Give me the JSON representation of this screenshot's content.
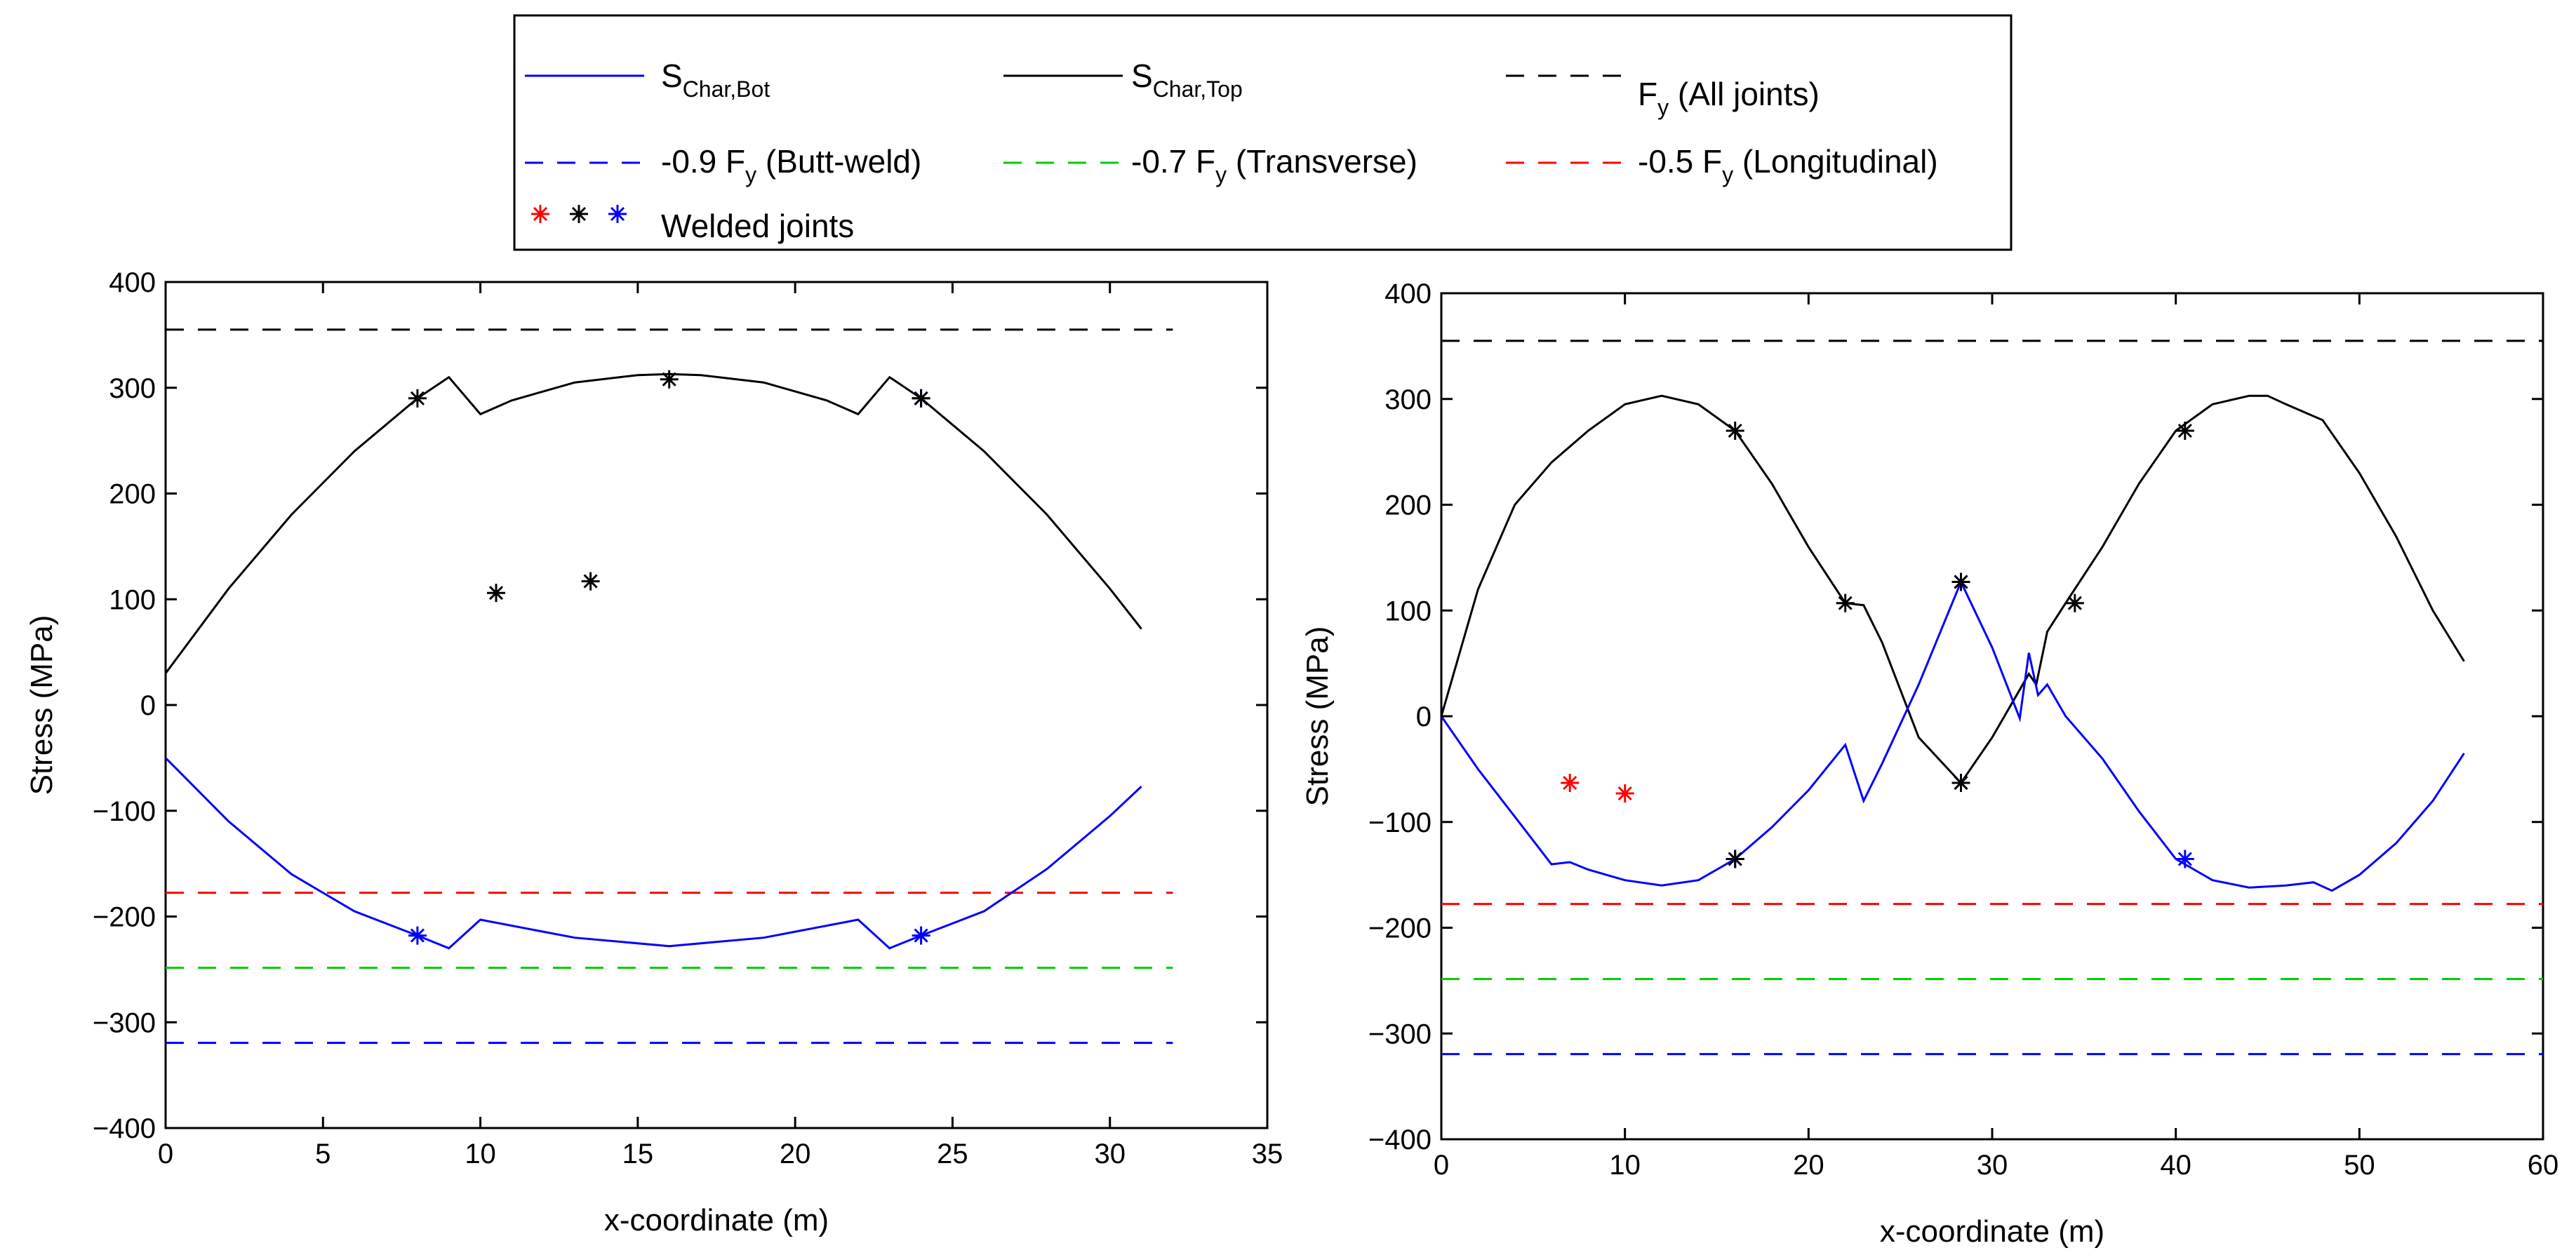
{
  "legend": {
    "items": [
      {
        "label": "S",
        "sub": "Char,Bot",
        "tail": "",
        "color": "#0000ff",
        "style": "solid"
      },
      {
        "label": "S",
        "sub": "Char,Top",
        "tail": "",
        "color": "#000000",
        "style": "solid"
      },
      {
        "label": "F",
        "sub": "y",
        "tail": " (All joints)",
        "color": "#000000",
        "style": "dashed"
      },
      {
        "label": "-0.9 F",
        "sub": "y",
        "tail": " (Butt-weld)",
        "color": "#0000ff",
        "style": "dashed"
      },
      {
        "label": "-0.7 F",
        "sub": "y",
        "tail": " (Transverse)",
        "color": "#00cc00",
        "style": "dashed"
      },
      {
        "label": "-0.5 F",
        "sub": "y",
        "tail": " (Longitudinal)",
        "color": "#ff0000",
        "style": "dashed"
      },
      {
        "label": "Welded joints",
        "sub": "",
        "tail": "",
        "color": "#000000",
        "style": "markers"
      }
    ]
  },
  "chart_data": [
    {
      "type": "line",
      "title": "",
      "xlabel": "x-coordinate (m)",
      "ylabel": "Stress (MPa)",
      "xlim": [
        0,
        35
      ],
      "ylim": [
        -400,
        400
      ],
      "xticks": [
        "0",
        "5",
        "10",
        "15",
        "20",
        "25",
        "30",
        "35"
      ],
      "yticks": [
        "400",
        "300",
        "200",
        "100",
        "0",
        "−100",
        "−200",
        "−300",
        "−400"
      ],
      "hlines": [
        {
          "name": "Fy (All joints)",
          "y": 355,
          "x": [
            0,
            32
          ],
          "color": "#000000"
        },
        {
          "name": "-0.5 Fy (Longitudinal)",
          "y": -177.5,
          "x": [
            0,
            32
          ],
          "color": "#ff0000"
        },
        {
          "name": "-0.7 Fy (Transverse)",
          "y": -248.5,
          "x": [
            0,
            32
          ],
          "color": "#00cc00"
        },
        {
          "name": "-0.9 Fy (Butt-weld)",
          "y": -319.5,
          "x": [
            0,
            32
          ],
          "color": "#0000ff"
        }
      ],
      "series": [
        {
          "name": "S Char,Top",
          "color": "#000000",
          "x": [
            0,
            2,
            4,
            6,
            8,
            9,
            10,
            11,
            13,
            15,
            16,
            17,
            19,
            21,
            22,
            23,
            24,
            26,
            28,
            30,
            31
          ],
          "y": [
            30,
            110,
            180,
            240,
            290,
            310,
            275,
            288,
            305,
            312,
            313,
            312,
            305,
            288,
            275,
            310,
            290,
            240,
            180,
            110,
            72
          ]
        },
        {
          "name": "S Char,Bot",
          "color": "#0000ff",
          "x": [
            0,
            2,
            4,
            6,
            8,
            9,
            10,
            13,
            16,
            19,
            22,
            23,
            24,
            26,
            28,
            30,
            31
          ],
          "y": [
            -50,
            -110,
            -160,
            -195,
            -218,
            -230,
            -203,
            -220,
            -228,
            -220,
            -203,
            -230,
            -218,
            -195,
            -155,
            -105,
            -77
          ]
        }
      ],
      "markers": [
        {
          "x": 8,
          "y": 290,
          "color": "#000000"
        },
        {
          "x": 10.5,
          "y": 106,
          "color": "#000000"
        },
        {
          "x": 13.5,
          "y": 117,
          "color": "#000000"
        },
        {
          "x": 16,
          "y": 308,
          "color": "#000000"
        },
        {
          "x": 24,
          "y": 290,
          "color": "#0000ff"
        },
        {
          "x": 24,
          "y": 290,
          "color": "#000000"
        },
        {
          "x": 8,
          "y": -218,
          "color": "#0000ff"
        },
        {
          "x": 24,
          "y": -218,
          "color": "#0000ff"
        }
      ]
    },
    {
      "type": "line",
      "title": "",
      "xlabel": "x-coordinate (m)",
      "ylabel": "Stress (MPa)",
      "xlim": [
        0,
        60
      ],
      "ylim": [
        -400,
        400
      ],
      "xticks": [
        "0",
        "10",
        "20",
        "30",
        "40",
        "50",
        "60"
      ],
      "yticks": [
        "400",
        "300",
        "200",
        "100",
        "0",
        "−100",
        "−200",
        "−300",
        "−400"
      ],
      "hlines": [
        {
          "name": "Fy (All joints)",
          "y": 355,
          "x": [
            0,
            60
          ],
          "color": "#000000"
        },
        {
          "name": "-0.5 Fy (Longitudinal)",
          "y": -177.5,
          "x": [
            0,
            60
          ],
          "color": "#ff0000"
        },
        {
          "name": "-0.7 Fy (Transverse)",
          "y": -248.5,
          "x": [
            0,
            60
          ],
          "color": "#00cc00"
        },
        {
          "name": "-0.9 Fy (Butt-weld)",
          "y": -319.5,
          "x": [
            0,
            60
          ],
          "color": "#0000ff"
        }
      ],
      "series": [
        {
          "name": "S Char,Top",
          "color": "#000000",
          "x": [
            0,
            2,
            4,
            6,
            8,
            10,
            12,
            14,
            16,
            18,
            20,
            22,
            23,
            24,
            26,
            28.3,
            30,
            32,
            32.4,
            33,
            34,
            36,
            38,
            40,
            42,
            44,
            45,
            46,
            48,
            50,
            52,
            54,
            55.7
          ],
          "y": [
            0,
            120,
            200,
            240,
            270,
            295,
            303,
            295,
            270,
            220,
            160,
            107,
            105,
            70,
            -20,
            -63,
            -20,
            40,
            30,
            80,
            107,
            160,
            220,
            270,
            295,
            303,
            303,
            295,
            280,
            230,
            170,
            100,
            52
          ]
        },
        {
          "name": "S Char,Bot",
          "color": "#0000ff",
          "x": [
            0,
            2,
            4,
            6,
            7,
            8,
            10,
            12,
            14,
            16,
            18,
            20,
            22,
            23,
            24,
            26,
            28.3,
            30,
            31.5,
            32,
            32.5,
            33,
            34,
            36,
            38,
            40,
            42,
            44,
            46,
            47.5,
            48.5,
            50,
            52,
            54,
            55.7
          ],
          "y": [
            0,
            -50,
            -95,
            -140,
            -138,
            -145,
            -155,
            -160,
            -155,
            -135,
            -105,
            -70,
            -27,
            -80,
            -45,
            30,
            127,
            65,
            -2,
            60,
            20,
            30,
            0,
            -40,
            -90,
            -135,
            -155,
            -162,
            -160,
            -157,
            -165,
            -150,
            -120,
            -80,
            -35
          ]
        }
      ],
      "markers": [
        {
          "x": 7,
          "y": -63,
          "color": "#ff0000"
        },
        {
          "x": 10,
          "y": -73,
          "color": "#ff0000"
        },
        {
          "x": 16,
          "y": 270,
          "color": "#000000"
        },
        {
          "x": 22,
          "y": 107,
          "color": "#000000"
        },
        {
          "x": 28.3,
          "y": 127,
          "color": "#0000ff"
        },
        {
          "x": 28.3,
          "y": 127,
          "color": "#000000"
        },
        {
          "x": 34.5,
          "y": 107,
          "color": "#000000"
        },
        {
          "x": 40.5,
          "y": 270,
          "color": "#000000"
        },
        {
          "x": 16,
          "y": -135,
          "color": "#0000ff"
        },
        {
          "x": 16,
          "y": -135,
          "color": "#000000"
        },
        {
          "x": 28.3,
          "y": -63,
          "color": "#0000ff"
        },
        {
          "x": 28.3,
          "y": -63,
          "color": "#000000"
        },
        {
          "x": 40.5,
          "y": -135,
          "color": "#0000ff"
        }
      ]
    }
  ]
}
